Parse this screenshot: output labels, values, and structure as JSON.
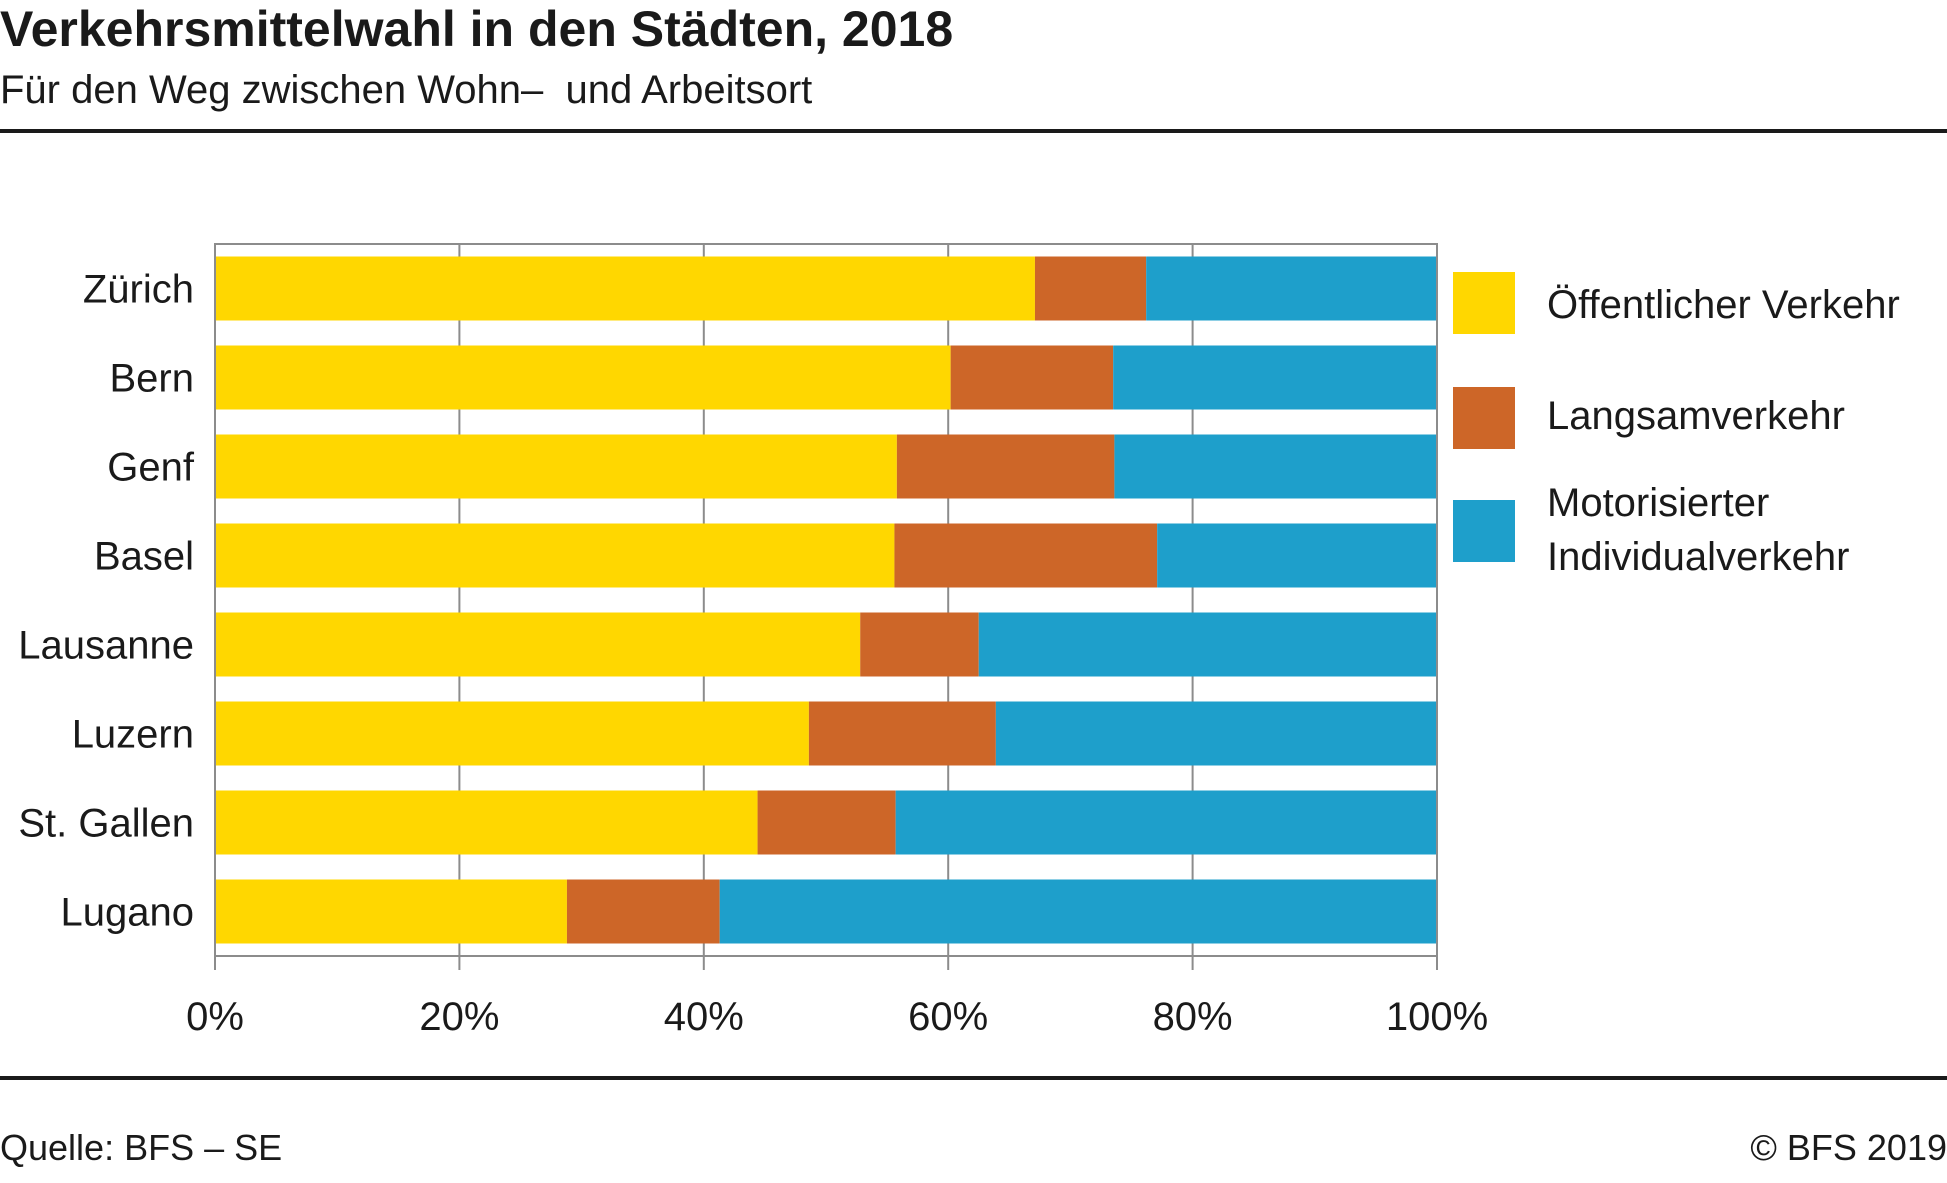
{
  "header": {
    "title": "Verkehrsmittelwahl in den Städten, 2018",
    "subtitle": "Für den Weg zwischen Wohn–  und Arbeitsort"
  },
  "footer": {
    "source": "Quelle: BFS – SE",
    "copyright": "© BFS 2019"
  },
  "legend": {
    "items": [
      {
        "label": "Öffentlicher Verkehr",
        "color": "#FFD700"
      },
      {
        "label": "Langsamverkehr",
        "color": "#CD6628"
      },
      {
        "label": "Motorisierter Individualverkehr",
        "color": "#1E9FCB"
      }
    ]
  },
  "chart_data": {
    "type": "bar",
    "orientation": "horizontal",
    "stacked": true,
    "categories": [
      "Zürich",
      "Bern",
      "Genf",
      "Basel",
      "Lausanne",
      "Luzern",
      "St. Gallen",
      "Lugano"
    ],
    "series": [
      {
        "name": "Öffentlicher Verkehr",
        "color": "#FFD700",
        "values": [
          67.1,
          60.2,
          55.8,
          55.6,
          52.8,
          48.6,
          44.4,
          28.8
        ]
      },
      {
        "name": "Langsamverkehr",
        "color": "#CD6628",
        "values": [
          9.1,
          13.3,
          17.8,
          21.5,
          9.7,
          15.3,
          11.3,
          12.5
        ]
      },
      {
        "name": "Motorisierter Individualverkehr",
        "color": "#1E9FCB",
        "values": [
          23.8,
          26.5,
          26.4,
          22.9,
          37.5,
          36.1,
          44.3,
          58.7
        ]
      }
    ],
    "xlim": [
      0,
      100
    ],
    "xticks": [
      "0%",
      "20%",
      "40%",
      "60%",
      "80%",
      "100%"
    ],
    "grid": true,
    "legend_position": "right"
  }
}
